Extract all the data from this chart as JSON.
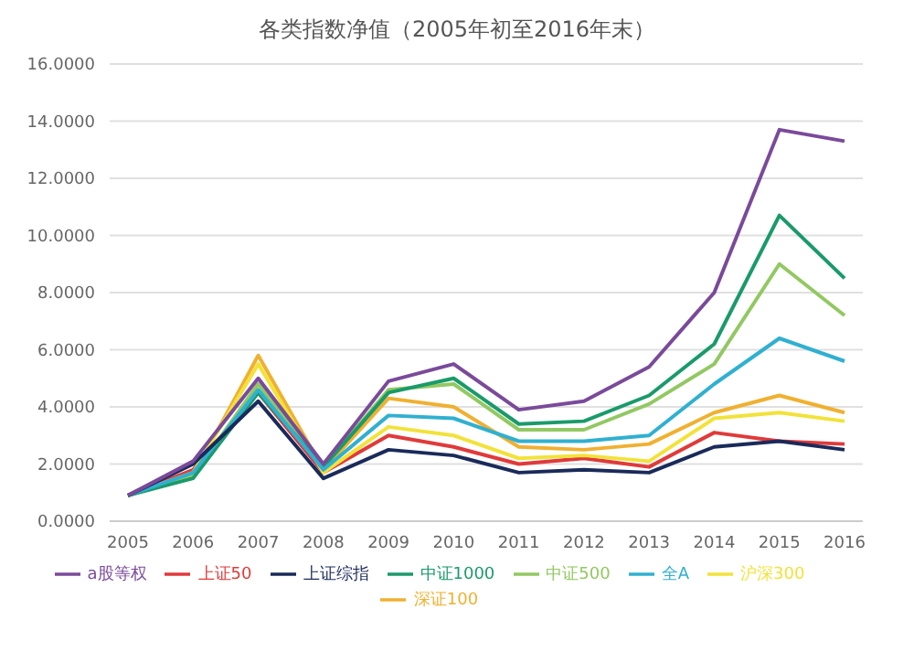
{
  "chart_data": {
    "type": "line",
    "title": "各类指数净值（2005年初至2016年末）",
    "categories": [
      "2005",
      "2006",
      "2007",
      "2008",
      "2009",
      "2010",
      "2011",
      "2012",
      "2013",
      "2014",
      "2015",
      "2016"
    ],
    "series": [
      {
        "name": "上证50",
        "color": "#e03a3a",
        "values": [
          0.9,
          1.8,
          4.5,
          1.7,
          3.0,
          2.6,
          2.0,
          2.2,
          1.9,
          3.1,
          2.8,
          2.7
        ]
      },
      {
        "name": "深证100",
        "color": "#f0b030",
        "values": [
          0.9,
          1.6,
          5.8,
          1.8,
          4.3,
          4.0,
          2.6,
          2.5,
          2.7,
          3.8,
          4.4,
          3.8
        ]
      },
      {
        "name": "沪深300",
        "color": "#f2e23a",
        "values": [
          0.9,
          1.7,
          5.5,
          1.7,
          3.3,
          3.0,
          2.2,
          2.3,
          2.1,
          3.6,
          3.8,
          3.5
        ]
      },
      {
        "name": "中证500",
        "color": "#92c862",
        "values": [
          0.9,
          1.6,
          4.8,
          1.9,
          4.6,
          4.8,
          3.2,
          3.2,
          4.1,
          5.5,
          9.0,
          7.2
        ]
      },
      {
        "name": "中证1000",
        "color": "#1a9a6a",
        "values": [
          0.9,
          1.5,
          4.5,
          1.9,
          4.5,
          5.0,
          3.4,
          3.5,
          4.4,
          6.2,
          10.7,
          8.5
        ]
      },
      {
        "name": "全A",
        "color": "#30b0d0",
        "values": [
          0.9,
          1.7,
          4.6,
          1.8,
          3.7,
          3.6,
          2.8,
          2.8,
          3.0,
          4.8,
          6.4,
          5.6
        ]
      },
      {
        "name": "上证综指",
        "color": "#1a2a5a",
        "values": [
          0.9,
          2.0,
          4.2,
          1.5,
          2.5,
          2.3,
          1.7,
          1.8,
          1.7,
          2.6,
          2.8,
          2.5
        ]
      },
      {
        "name": "a股等权",
        "color": "#7a4a9a",
        "values": [
          0.9,
          2.1,
          5.0,
          2.0,
          4.9,
          5.5,
          3.9,
          4.2,
          5.4,
          8.0,
          13.7,
          13.3
        ]
      }
    ],
    "ylim": [
      0,
      16
    ],
    "yticks": [
      {
        "value": 0,
        "label": "0.0000"
      },
      {
        "value": 2,
        "label": "2.0000"
      },
      {
        "value": 4,
        "label": "4.0000"
      },
      {
        "value": 6,
        "label": "6.0000"
      },
      {
        "value": 8,
        "label": "8.0000"
      },
      {
        "value": 10,
        "label": "10.0000"
      },
      {
        "value": 12,
        "label": "12.0000"
      },
      {
        "value": 14,
        "label": "14.0000"
      },
      {
        "value": 16,
        "label": "16.0000"
      }
    ],
    "grid": "y",
    "legend": "bottom",
    "marker": "none",
    "line_style": "solid"
  }
}
